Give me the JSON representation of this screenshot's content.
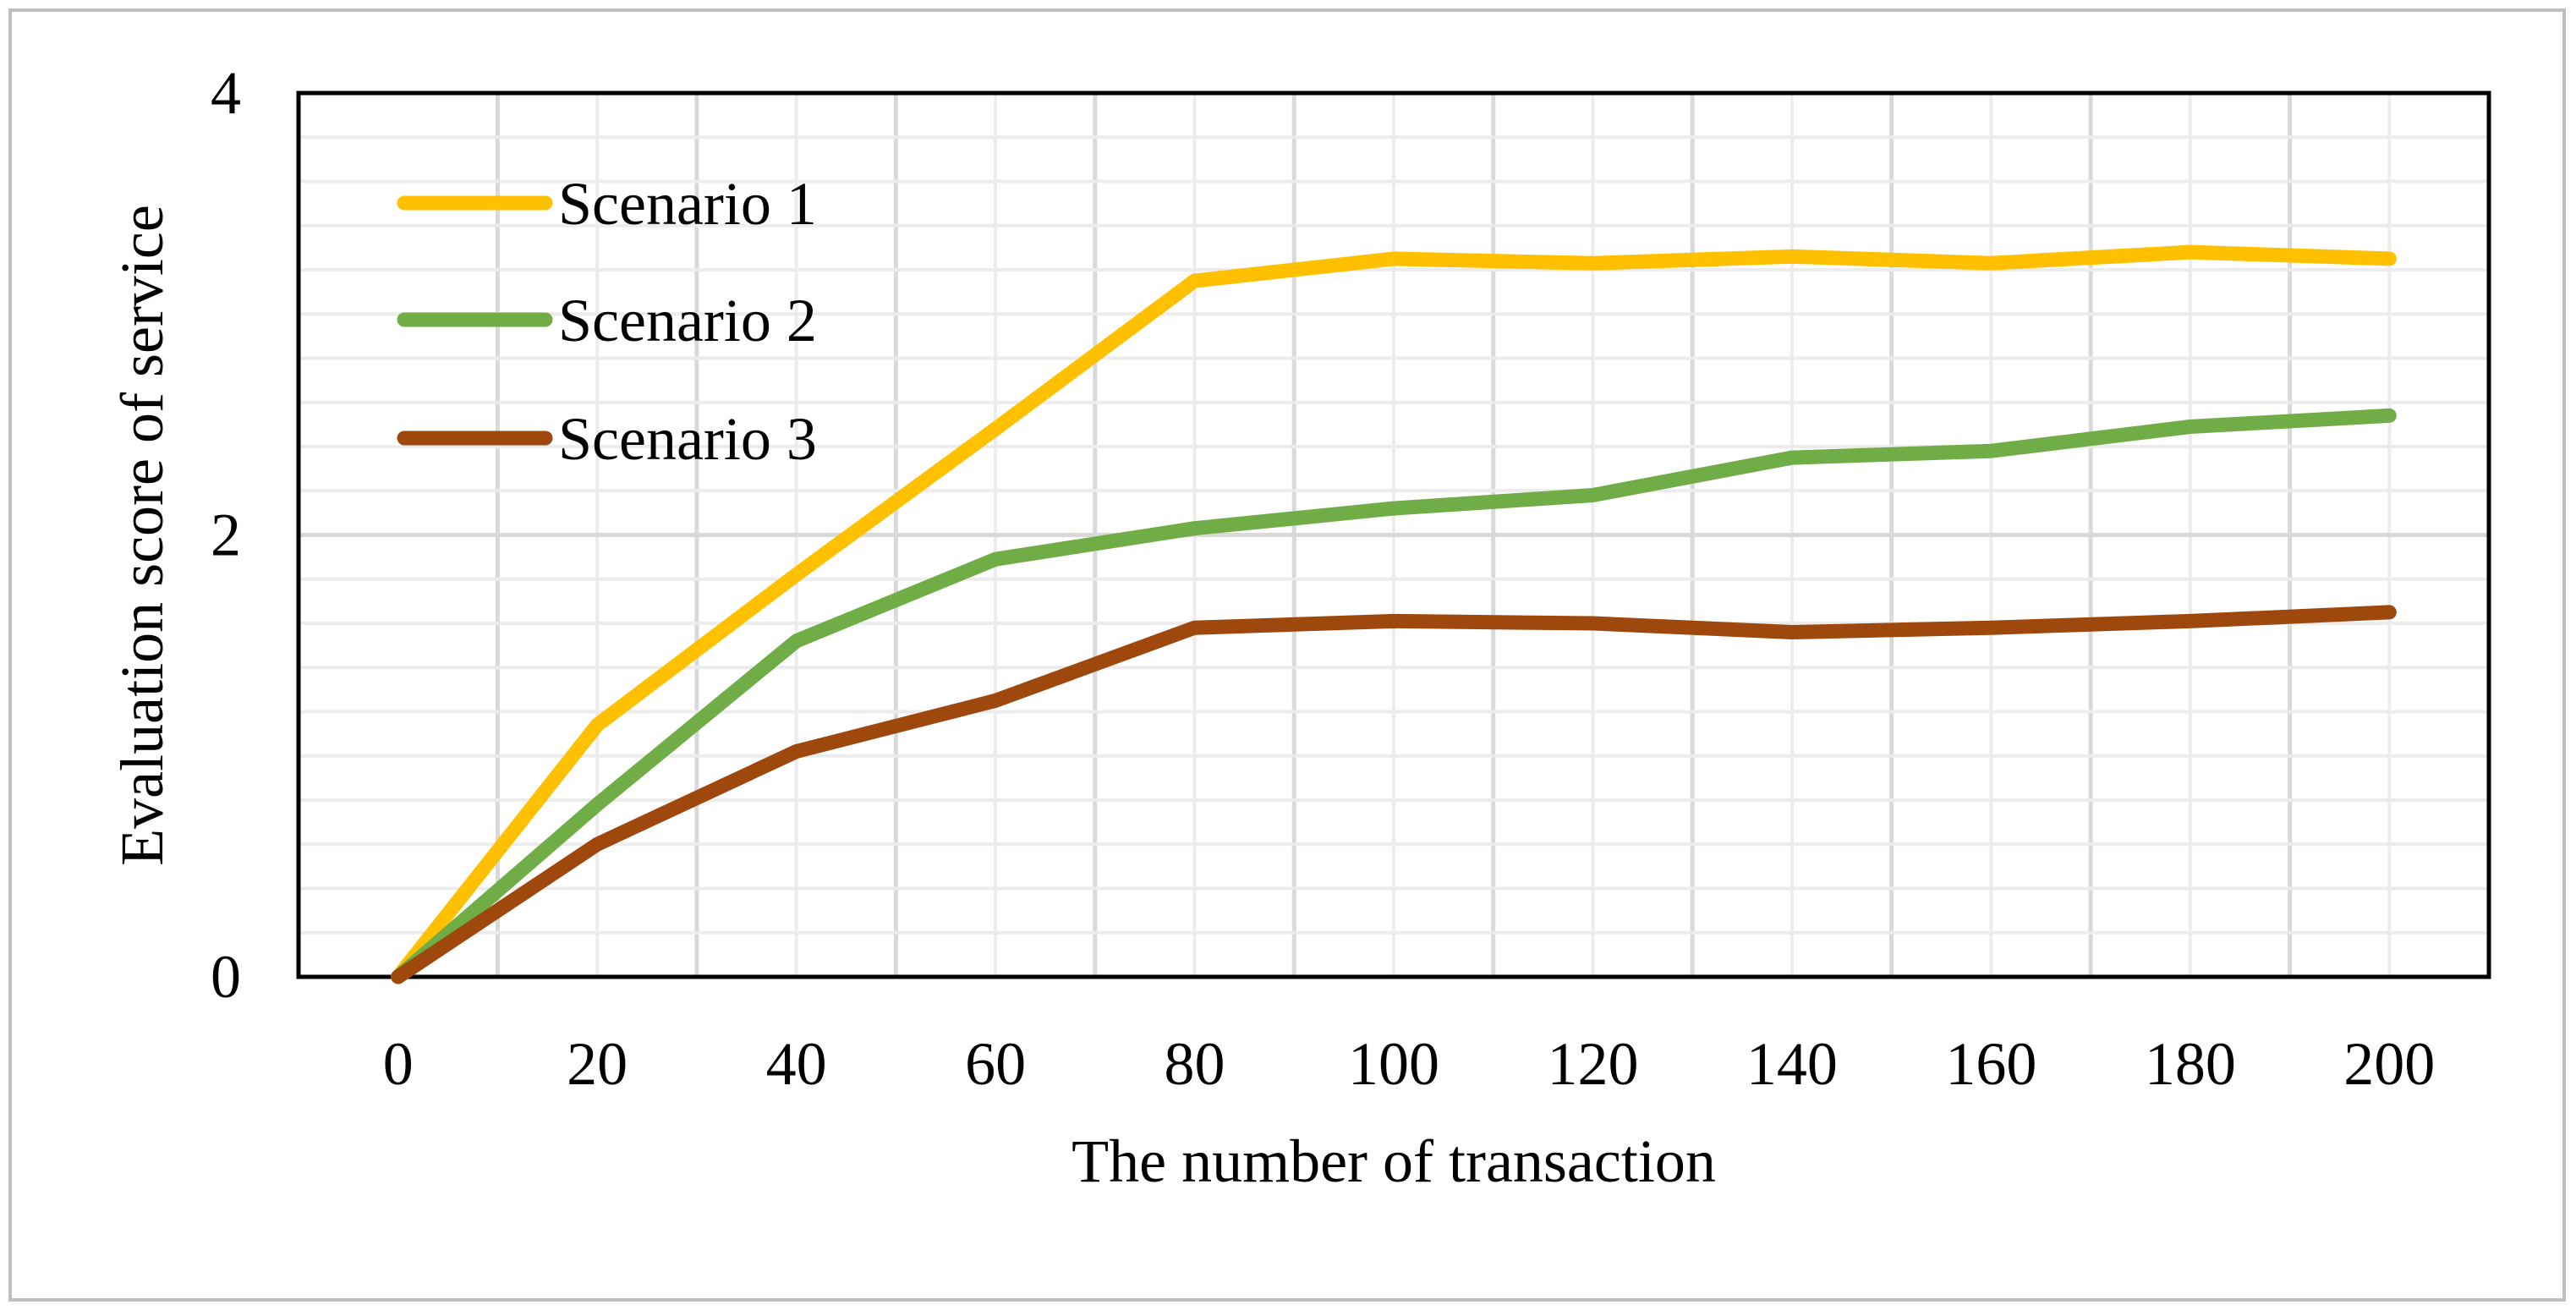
{
  "chart_data": {
    "type": "line",
    "title": "",
    "xlabel": "The number of transaction",
    "ylabel": "Evaluation score of service",
    "x": [
      0,
      20,
      40,
      60,
      80,
      100,
      120,
      140,
      160,
      180,
      200
    ],
    "xlim": [
      -10,
      210
    ],
    "ylim": [
      0,
      4
    ],
    "y_ticks": [
      0,
      2,
      4
    ],
    "grid": true,
    "legend_position": "top-left",
    "series": [
      {
        "name": "Scenario 1",
        "color": "#FFC000",
        "values": [
          0,
          1.14,
          1.82,
          2.48,
          3.15,
          3.25,
          3.23,
          3.26,
          3.23,
          3.28,
          3.25
        ]
      },
      {
        "name": "Scenario 2",
        "color": "#70AD47",
        "values": [
          0,
          0.78,
          1.52,
          1.89,
          2.03,
          2.12,
          2.18,
          2.35,
          2.38,
          2.49,
          2.54
        ]
      },
      {
        "name": "Scenario 3",
        "color": "#9E480E",
        "values": [
          0,
          0.6,
          1.02,
          1.25,
          1.58,
          1.61,
          1.6,
          1.56,
          1.58,
          1.61,
          1.65
        ]
      }
    ]
  }
}
